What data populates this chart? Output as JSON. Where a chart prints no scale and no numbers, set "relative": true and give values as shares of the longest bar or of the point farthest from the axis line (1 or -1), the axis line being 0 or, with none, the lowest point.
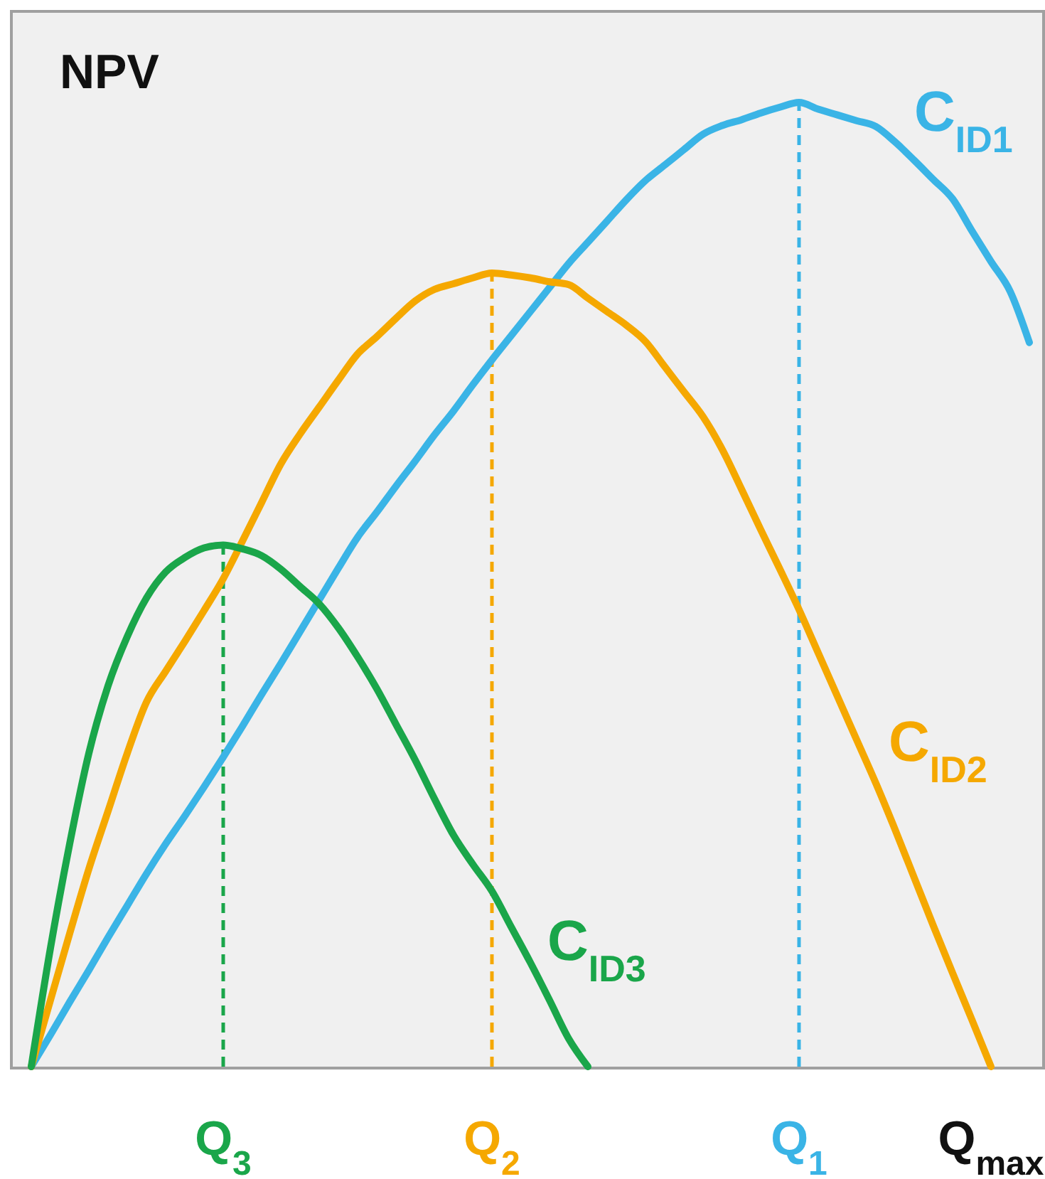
{
  "chart_data": {
    "type": "line",
    "title": "NPV",
    "relative": true,
    "grid": false,
    "marker": "none",
    "line_style": "solid",
    "categories": [
      null,
      null,
      null,
      null,
      null,
      null,
      null,
      null,
      null,
      null,
      "Q$_{3}$",
      null,
      null,
      null,
      null,
      null,
      null,
      null,
      null,
      null,
      null,
      null,
      null,
      null,
      "Q$_{2}$",
      null,
      null,
      null,
      null,
      null,
      null,
      null,
      null,
      null,
      null,
      null,
      null,
      null,
      null,
      null,
      "Q$_{1}$",
      null,
      null,
      null,
      null,
      null,
      null,
      null,
      null,
      null,
      "Q$_{max}$",
      null,
      null
    ],
    "ref_lines": [
      {
        "axis": "x",
        "value": "Q$_{3}$",
        "label": null,
        "color": "#1aa64a",
        "line_style": "dashed"
      },
      {
        "axis": "x",
        "value": "Q$_{2}$",
        "label": null,
        "color": "#f5a800",
        "line_style": "dashed"
      },
      {
        "axis": "x",
        "value": "Q$_{1}$",
        "label": null,
        "color": "#3ab4e6",
        "line_style": "dashed"
      }
    ],
    "series": [
      {
        "name": "C$_{ID1}$",
        "color": "#3ab4e6",
        "values": [
          0,
          0.033,
          0.067,
          0.1,
          0.134,
          0.167,
          0.2,
          0.231,
          0.26,
          0.29,
          0.321,
          0.353,
          0.386,
          0.418,
          0.451,
          0.484,
          0.517,
          0.549,
          0.575,
          0.602,
          0.628,
          0.655,
          0.68,
          0.707,
          0.733,
          0.758,
          0.783,
          0.808,
          0.833,
          0.855,
          0.877,
          0.899,
          0.919,
          0.935,
          0.951,
          0.967,
          0.976,
          0.982,
          0.989,
          0.995,
          1,
          0.993,
          0.987,
          0.981,
          0.975,
          0.959,
          0.94,
          0.92,
          0.9,
          0.867,
          0.835,
          0.804,
          0.751
        ]
      },
      {
        "name": "C$_{ID2}$",
        "color": "#f5a800",
        "values": [
          0,
          0.069,
          0.138,
          0.205,
          0.265,
          0.325,
          0.378,
          0.41,
          0.441,
          0.473,
          0.506,
          0.545,
          0.585,
          0.625,
          0.656,
          0.684,
          0.712,
          0.739,
          0.757,
          0.776,
          0.794,
          0.806,
          0.812,
          0.818,
          0.823,
          0.821,
          0.818,
          0.814,
          0.811,
          0.797,
          0.783,
          0.769,
          0.752,
          0.726,
          0.7,
          0.674,
          0.64,
          0.599,
          0.557,
          0.516,
          0.474,
          0.429,
          0.384,
          0.339,
          0.294,
          0.246,
          0.196,
          0.146,
          0.097,
          0.049,
          0,
          null,
          null
        ]
      },
      {
        "name": "C$_{ID3}$",
        "color": "#1aa64a",
        "values": [
          0,
          0.123,
          0.231,
          0.325,
          0.395,
          0.446,
          0.486,
          0.513,
          0.528,
          0.538,
          0.541,
          0.537,
          0.53,
          0.516,
          0.498,
          0.48,
          0.455,
          0.425,
          0.392,
          0.355,
          0.318,
          0.278,
          0.24,
          0.21,
          0.182,
          0.145,
          0.108,
          0.069,
          0.029,
          0,
          null,
          null,
          null,
          null,
          null,
          null,
          null,
          null,
          null,
          null,
          null,
          null,
          null,
          null,
          null,
          null,
          null,
          null,
          null,
          null,
          null,
          null,
          null
        ]
      }
    ]
  }
}
